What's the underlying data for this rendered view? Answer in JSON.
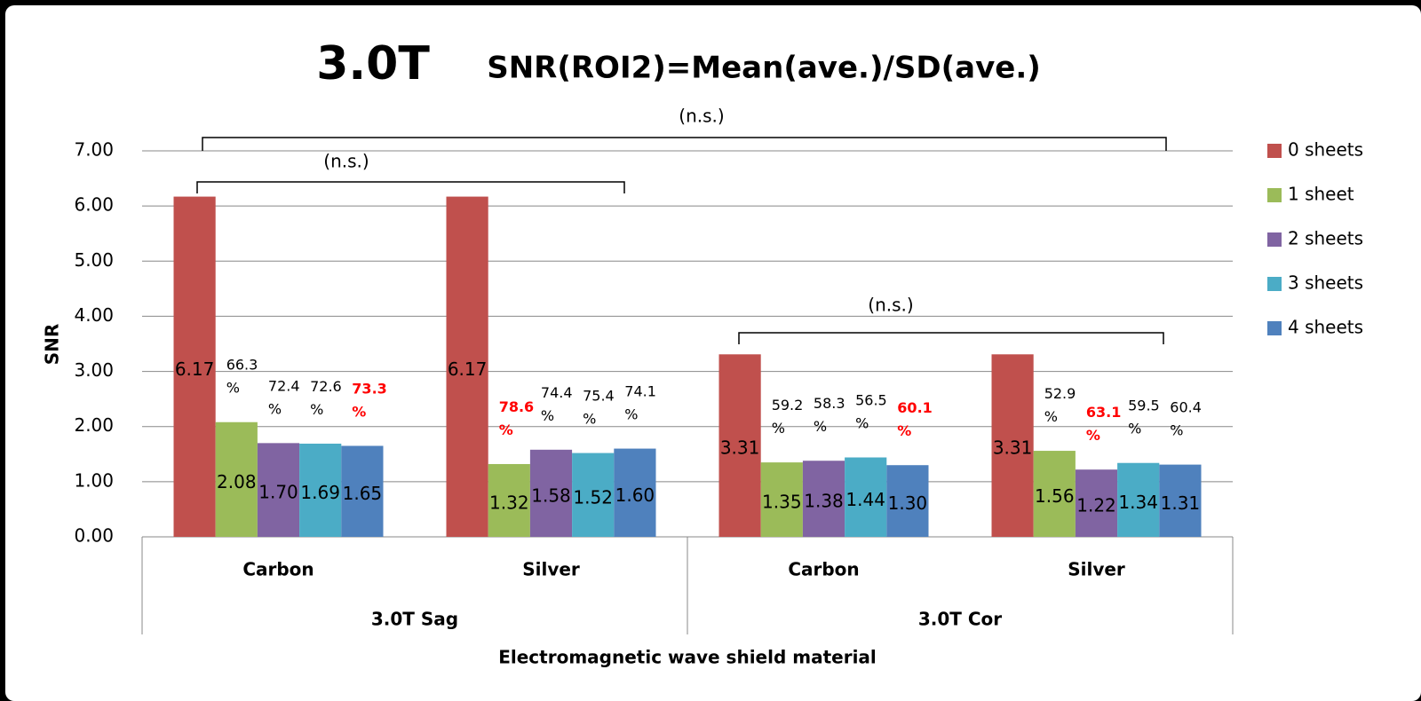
{
  "chart_data": {
    "type": "bar",
    "title": "3.0T",
    "subtitle": "SNR(ROI2)=Mean(ave.)/SD(ave.)",
    "ylabel": "SNR",
    "xlabel": "Electromagnetic wave shield material",
    "categories": [
      "Carbon",
      "Silver",
      "Carbon",
      "Silver"
    ],
    "category_groups": [
      "3.0T Sag",
      "3.0T Cor"
    ],
    "ylim": [
      0,
      7
    ],
    "yticks": [
      {
        "value": 0,
        "label": "0.00"
      },
      {
        "value": 1,
        "label": "1.00"
      },
      {
        "value": 2,
        "label": "2.00"
      },
      {
        "value": 3,
        "label": "3.00"
      },
      {
        "value": 4,
        "label": "4.00"
      },
      {
        "value": 5,
        "label": "5.00"
      },
      {
        "value": 6,
        "label": "6.00"
      },
      {
        "value": 7,
        "label": "7.00"
      }
    ],
    "grid": true,
    "legend": "right",
    "highlight_color": "#ff0000",
    "series": [
      {
        "name": "0 sheets",
        "color": "#c0504d",
        "values": [
          6.17,
          6.17,
          3.31,
          3.31
        ],
        "value_labels": [
          "6.17",
          "6.17",
          "3.31",
          "3.31"
        ]
      },
      {
        "name": "1 sheet",
        "color": "#9bbb59",
        "values": [
          2.08,
          1.32,
          1.35,
          1.56
        ],
        "value_labels": [
          "2.08",
          "1.32",
          "1.35",
          "1.56"
        ],
        "percent_values": [
          66.3,
          78.6,
          59.2,
          52.9
        ],
        "percent_labels": [
          "66.3%",
          "78.6%",
          "59.2%",
          "52.9%"
        ]
      },
      {
        "name": "2 sheets",
        "color": "#8064a2",
        "values": [
          1.7,
          1.58,
          1.38,
          1.22
        ],
        "value_labels": [
          "1.70",
          "1.58",
          "1.38",
          "1.22"
        ],
        "percent_values": [
          72.4,
          74.4,
          58.3,
          63.1
        ],
        "percent_labels": [
          "72.4%",
          "74.4%",
          "58.3%",
          "63.1%"
        ]
      },
      {
        "name": "3 sheets",
        "color": "#4bacc6",
        "values": [
          1.69,
          1.52,
          1.44,
          1.34
        ],
        "value_labels": [
          "1.69",
          "1.52",
          "1.44",
          "1.34"
        ],
        "percent_values": [
          72.6,
          75.4,
          56.5,
          59.5
        ],
        "percent_labels": [
          "72.6%",
          "75.4%",
          "56.5%",
          "59.5%"
        ]
      },
      {
        "name": "4 sheets",
        "color": "#4f81bd",
        "values": [
          1.65,
          1.6,
          1.3,
          1.31
        ],
        "value_labels": [
          "1.65",
          "1.60",
          "1.30",
          "1.31"
        ],
        "percent_values": [
          73.3,
          74.1,
          60.1,
          60.4
        ],
        "percent_labels": [
          "73.3%",
          "74.1%",
          "60.1%",
          "60.4%"
        ]
      }
    ],
    "annotations": [
      "(n.s.)",
      "(n.s.)",
      "(n.s.)"
    ]
  }
}
